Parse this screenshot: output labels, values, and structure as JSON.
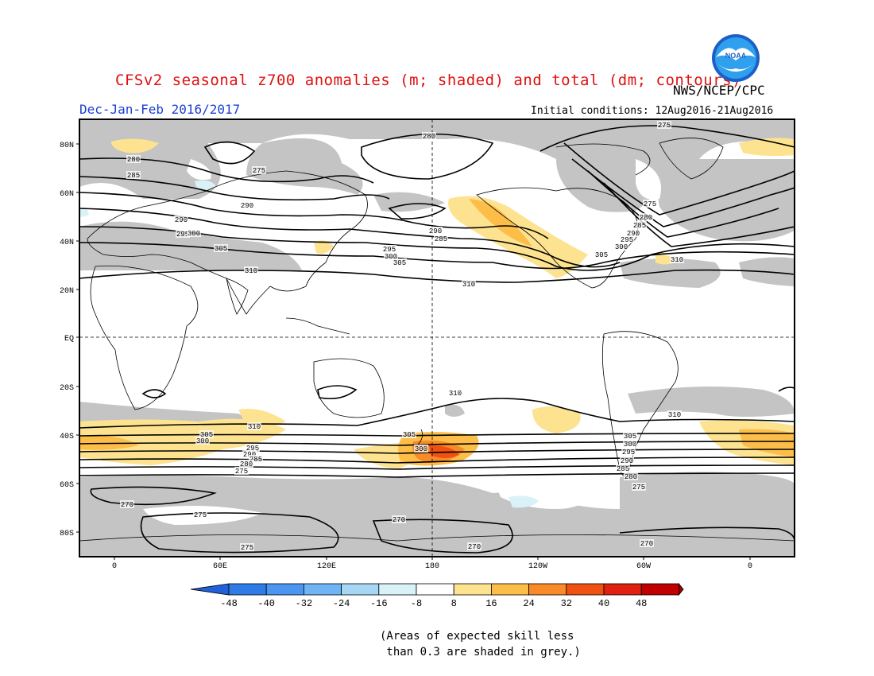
{
  "header": {
    "title": "CFSv2 seasonal z700 anomalies (m; shaded) and total (dm; contours)",
    "agency": "NWS/NCEP/CPC",
    "period": "Dec-Jan-Feb 2016/2017",
    "initial_conditions": "Initial conditions: 12Aug2016-21Aug2016",
    "logo_text": "NOAA"
  },
  "map": {
    "lat_labels": [
      "80N",
      "60N",
      "40N",
      "20N",
      "EQ",
      "20S",
      "40S",
      "60S",
      "80S"
    ],
    "lon_labels": [
      "0",
      "60E",
      "120E",
      "180",
      "120W",
      "60W",
      "0"
    ],
    "contour_labels": [
      {
        "text": "280"
      },
      {
        "text": "285"
      },
      {
        "text": "290"
      },
      {
        "text": "295"
      },
      {
        "text": "300"
      },
      {
        "text": "305"
      },
      {
        "text": "310"
      },
      {
        "text": "275"
      },
      {
        "text": "280"
      },
      {
        "text": "290"
      },
      {
        "text": "285"
      },
      {
        "text": "290"
      },
      {
        "text": "295"
      },
      {
        "text": "300"
      },
      {
        "text": "305"
      },
      {
        "text": "310"
      },
      {
        "text": "275"
      },
      {
        "text": "275"
      },
      {
        "text": "280"
      },
      {
        "text": "285"
      },
      {
        "text": "290"
      },
      {
        "text": "295"
      },
      {
        "text": "300"
      },
      {
        "text": "305"
      },
      {
        "text": "310"
      },
      {
        "text": "310"
      },
      {
        "text": "310"
      },
      {
        "text": "310"
      },
      {
        "text": "305"
      },
      {
        "text": "300"
      },
      {
        "text": "295"
      },
      {
        "text": "290"
      },
      {
        "text": "285"
      },
      {
        "text": "280"
      },
      {
        "text": "275"
      },
      {
        "text": "305"
      },
      {
        "text": "300"
      },
      {
        "text": "305"
      },
      {
        "text": "300"
      },
      {
        "text": "295"
      },
      {
        "text": "290"
      },
      {
        "text": "285"
      },
      {
        "text": "280"
      },
      {
        "text": "275"
      },
      {
        "text": "270"
      },
      {
        "text": "275"
      },
      {
        "text": "275"
      },
      {
        "text": "270"
      },
      {
        "text": "270"
      },
      {
        "text": "270"
      }
    ]
  },
  "colorbar": {
    "labels": [
      "-48",
      "-40",
      "-32",
      "-24",
      "-16",
      "-8",
      "8",
      "16",
      "24",
      "32",
      "40",
      "48"
    ],
    "colors": [
      "#2060d8",
      "#2f7be8",
      "#4a96f0",
      "#6fb4f5",
      "#a6d7f5",
      "#d8f2f8",
      "#ffffff",
      "#fde390",
      "#fcbe48",
      "#f88a28",
      "#f05010",
      "#e02010",
      "#c00000",
      "#a00000"
    ]
  },
  "note": "(Areas of expected skill less\n than 0.3 are shaded in grey.)"
}
